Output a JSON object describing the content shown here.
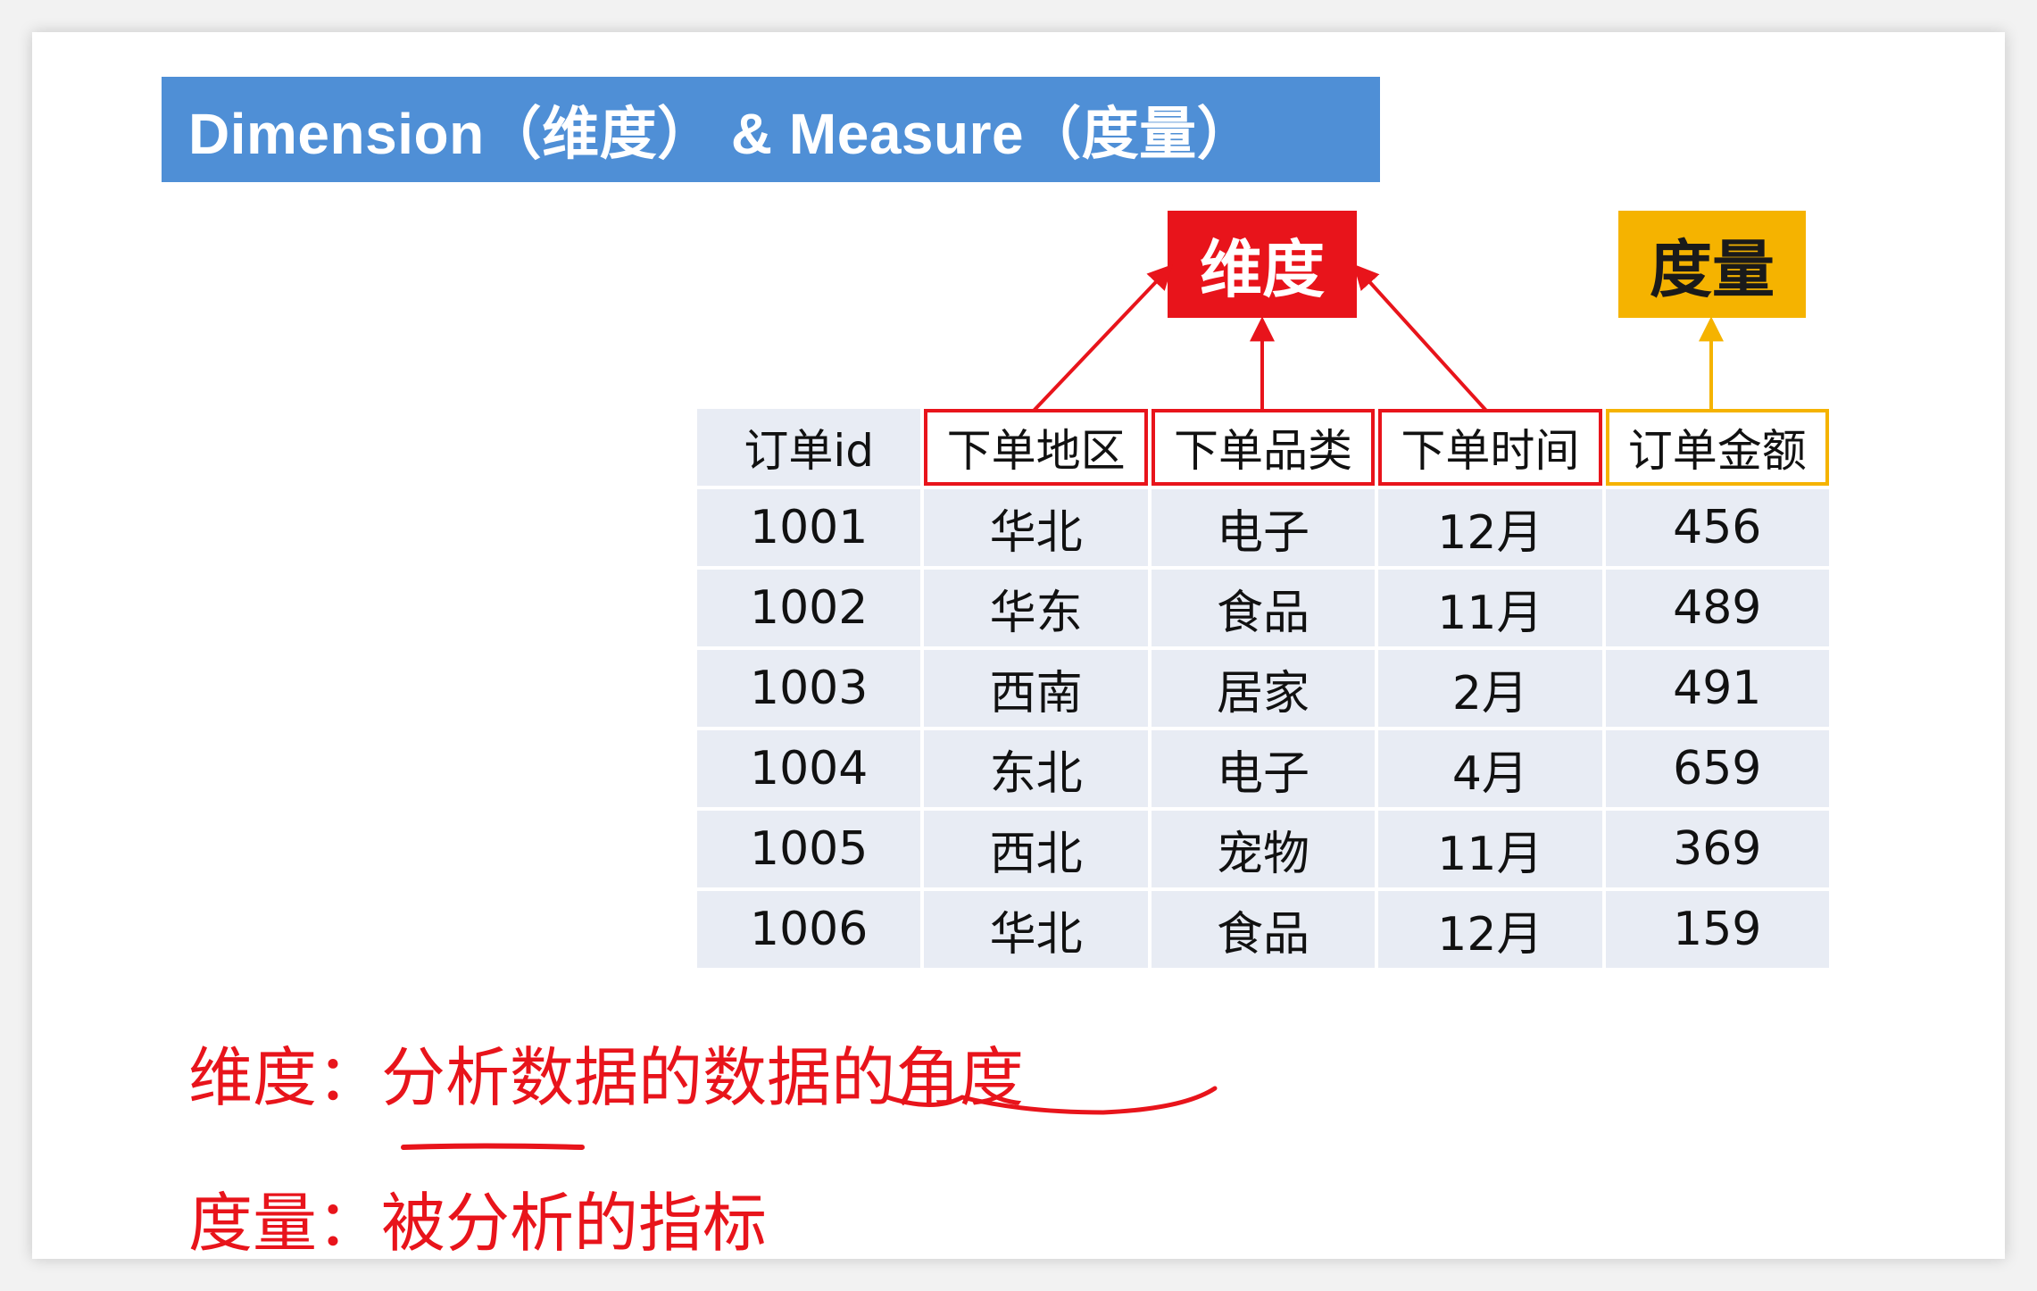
{
  "title": "Dimension（维度） & Measure（度量）",
  "tags": {
    "dimension": "维度",
    "measure": "度量"
  },
  "table": {
    "headers": [
      "订单id",
      "下单地区",
      "下单品类",
      "下单时间",
      "订单金额"
    ],
    "rows": [
      [
        "1001",
        "华北",
        "电子",
        "12月",
        "456"
      ],
      [
        "1002",
        "华东",
        "食品",
        "11月",
        "489"
      ],
      [
        "1003",
        "西南",
        "居家",
        "2月",
        "491"
      ],
      [
        "1004",
        "东北",
        "电子",
        "4月",
        "659"
      ],
      [
        "1005",
        "西北",
        "宠物",
        "11月",
        "369"
      ],
      [
        "1006",
        "华北",
        "食品",
        "12月",
        "159"
      ]
    ]
  },
  "notes": {
    "dimension": "维度：分析数据的数据的角度",
    "measure": "度量：被分析的指标"
  },
  "colors": {
    "title_bg": "#4f8fd6",
    "dimension": "#e8141b",
    "measure": "#f5b300",
    "cell_bg": "#e8ecf4"
  }
}
